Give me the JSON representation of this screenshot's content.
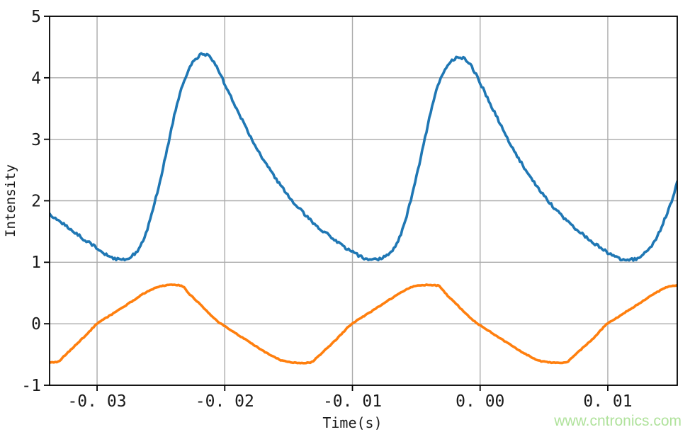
{
  "watermark": {
    "text": "www.cntronics.com"
  },
  "colors": {
    "background": "#ffffff",
    "axis": "#000000",
    "grid": "#ababab",
    "tick_text": "#1a1a1a",
    "blue_trace": "#1f77b4",
    "orange_trace": "#ff7f0e",
    "watermark": "#b0e29c"
  },
  "chart_data": {
    "type": "line",
    "title": "",
    "xlabel": "Time(s)",
    "ylabel": "Intensity",
    "xlim": [
      -0.03372,
      0.01544
    ],
    "ylim": [
      -1,
      5
    ],
    "grid": true,
    "legend": "none",
    "xticks": {
      "values": [
        -0.03,
        -0.02,
        -0.01,
        0.0,
        0.01
      ],
      "labels": [
        "-0. 03",
        "-0. 02",
        "-0. 01",
        "0. 00",
        "0. 01"
      ]
    },
    "yticks": {
      "values": [
        -1,
        0,
        1,
        2,
        3,
        4,
        5
      ],
      "labels": [
        "-1",
        "0",
        "1",
        "2",
        "3",
        "4",
        "5"
      ]
    },
    "series": [
      {
        "name": "blue-intensity-resonance",
        "color": "#1f77b4",
        "noise": 0.022,
        "points": [
          [
            -0.03372,
            1.78
          ],
          [
            -0.033,
            1.68
          ],
          [
            -0.0325,
            1.6
          ],
          [
            -0.032,
            1.52
          ],
          [
            -0.0314,
            1.43
          ],
          [
            -0.0308,
            1.34
          ],
          [
            -0.0302,
            1.26
          ],
          [
            -0.0297,
            1.18
          ],
          [
            -0.0292,
            1.11
          ],
          [
            -0.0288,
            1.07
          ],
          [
            -0.0284,
            1.05
          ],
          [
            -0.028,
            1.05
          ],
          [
            -0.0276,
            1.07
          ],
          [
            -0.0271,
            1.13
          ],
          [
            -0.0266,
            1.27
          ],
          [
            -0.0261,
            1.52
          ],
          [
            -0.0256,
            1.88
          ],
          [
            -0.0251,
            2.3
          ],
          [
            -0.0246,
            2.76
          ],
          [
            -0.0242,
            3.15
          ],
          [
            -0.0238,
            3.52
          ],
          [
            -0.0234,
            3.82
          ],
          [
            -0.023,
            4.05
          ],
          [
            -0.0226,
            4.22
          ],
          [
            -0.0222,
            4.32
          ],
          [
            -0.0218,
            4.38
          ],
          [
            -0.0214,
            4.37
          ],
          [
            -0.021,
            4.3
          ],
          [
            -0.0206,
            4.16
          ],
          [
            -0.0202,
            3.99
          ],
          [
            -0.0197,
            3.77
          ],
          [
            -0.0191,
            3.51
          ],
          [
            -0.0185,
            3.26
          ],
          [
            -0.0179,
            3.01
          ],
          [
            -0.0172,
            2.75
          ],
          [
            -0.0165,
            2.51
          ],
          [
            -0.0158,
            2.3
          ],
          [
            -0.0151,
            2.1
          ],
          [
            -0.0144,
            1.93
          ],
          [
            -0.0137,
            1.77
          ],
          [
            -0.013,
            1.63
          ],
          [
            -0.0123,
            1.51
          ],
          [
            -0.0116,
            1.4
          ],
          [
            -0.0109,
            1.29
          ],
          [
            -0.0102,
            1.19
          ],
          [
            -0.0096,
            1.12
          ],
          [
            -0.009,
            1.06
          ],
          [
            -0.0085,
            1.04
          ],
          [
            -0.008,
            1.05
          ],
          [
            -0.0075,
            1.09
          ],
          [
            -0.007,
            1.17
          ],
          [
            -0.0065,
            1.32
          ],
          [
            -0.006,
            1.58
          ],
          [
            -0.0055,
            1.95
          ],
          [
            -0.005,
            2.38
          ],
          [
            -0.0045,
            2.84
          ],
          [
            -0.0041,
            3.22
          ],
          [
            -0.0037,
            3.58
          ],
          [
            -0.0033,
            3.87
          ],
          [
            -0.0029,
            4.08
          ],
          [
            -0.0025,
            4.22
          ],
          [
            -0.0021,
            4.3
          ],
          [
            -0.0017,
            4.33
          ],
          [
            -0.0013,
            4.32
          ],
          [
            -0.0009,
            4.25
          ],
          [
            -0.0005,
            4.12
          ],
          [
            -0.0001,
            3.96
          ],
          [
            0.0004,
            3.75
          ],
          [
            0.001,
            3.49
          ],
          [
            0.0016,
            3.24
          ],
          [
            0.0022,
            2.99
          ],
          [
            0.0029,
            2.73
          ],
          [
            0.0036,
            2.49
          ],
          [
            0.0043,
            2.28
          ],
          [
            0.005,
            2.08
          ],
          [
            0.0057,
            1.91
          ],
          [
            0.0064,
            1.75
          ],
          [
            0.0071,
            1.61
          ],
          [
            0.0078,
            1.49
          ],
          [
            0.0085,
            1.38
          ],
          [
            0.0092,
            1.27
          ],
          [
            0.0099,
            1.17
          ],
          [
            0.0105,
            1.1
          ],
          [
            0.0111,
            1.05
          ],
          [
            0.0116,
            1.04
          ],
          [
            0.0121,
            1.05
          ],
          [
            0.0126,
            1.1
          ],
          [
            0.0131,
            1.19
          ],
          [
            0.0136,
            1.32
          ],
          [
            0.0141,
            1.52
          ],
          [
            0.0146,
            1.78
          ],
          [
            0.0151,
            2.06
          ],
          [
            0.01544,
            2.3
          ]
        ]
      },
      {
        "name": "orange-scan-ramp",
        "color": "#ff7f0e",
        "noise": 0.007,
        "points": [
          [
            -0.03372,
            -0.63
          ],
          [
            -0.0331,
            -0.62
          ],
          [
            -0.0325,
            -0.51
          ],
          [
            -0.0317,
            -0.35
          ],
          [
            -0.0308,
            -0.17
          ],
          [
            -0.03,
            0.0
          ],
          [
            -0.0291,
            0.12
          ],
          [
            -0.0282,
            0.24
          ],
          [
            -0.0273,
            0.36
          ],
          [
            -0.0265,
            0.47
          ],
          [
            -0.0258,
            0.55
          ],
          [
            -0.0252,
            0.6
          ],
          [
            -0.0246,
            0.625
          ],
          [
            -0.024,
            0.63
          ],
          [
            -0.0234,
            0.62
          ],
          [
            -0.0228,
            0.49
          ],
          [
            -0.022,
            0.33
          ],
          [
            -0.0211,
            0.14
          ],
          [
            -0.0203,
            0.0
          ],
          [
            -0.0196,
            -0.09
          ],
          [
            -0.0188,
            -0.2
          ],
          [
            -0.0179,
            -0.32
          ],
          [
            -0.017,
            -0.44
          ],
          [
            -0.0161,
            -0.54
          ],
          [
            -0.0155,
            -0.6
          ],
          [
            -0.0148,
            -0.625
          ],
          [
            -0.0141,
            -0.635
          ],
          [
            -0.0133,
            -0.63
          ],
          [
            -0.0128,
            -0.55
          ],
          [
            -0.012,
            -0.4
          ],
          [
            -0.0111,
            -0.22
          ],
          [
            -0.0101,
            -0.01
          ],
          [
            -0.0092,
            0.11
          ],
          [
            -0.0083,
            0.23
          ],
          [
            -0.0074,
            0.35
          ],
          [
            -0.0066,
            0.46
          ],
          [
            -0.0059,
            0.54
          ],
          [
            -0.0053,
            0.6
          ],
          [
            -0.0047,
            0.625
          ],
          [
            -0.004,
            0.63
          ],
          [
            -0.0033,
            0.62
          ],
          [
            -0.0027,
            0.49
          ],
          [
            -0.0019,
            0.33
          ],
          [
            -0.001,
            0.14
          ],
          [
            -0.0002,
            0.0
          ],
          [
            0.0005,
            -0.09
          ],
          [
            0.0013,
            -0.2
          ],
          [
            0.0022,
            -0.32
          ],
          [
            0.0031,
            -0.44
          ],
          [
            0.004,
            -0.54
          ],
          [
            0.0046,
            -0.6
          ],
          [
            0.0053,
            -0.625
          ],
          [
            0.006,
            -0.635
          ],
          [
            0.0067,
            -0.63
          ],
          [
            0.0072,
            -0.55
          ],
          [
            0.008,
            -0.4
          ],
          [
            0.009,
            -0.21
          ],
          [
            0.0099,
            -0.01
          ],
          [
            0.0108,
            0.11
          ],
          [
            0.0117,
            0.23
          ],
          [
            0.0126,
            0.35
          ],
          [
            0.0134,
            0.46
          ],
          [
            0.0141,
            0.54
          ],
          [
            0.0147,
            0.6
          ],
          [
            0.0152,
            0.62
          ],
          [
            0.01544,
            0.625
          ]
        ]
      }
    ]
  }
}
